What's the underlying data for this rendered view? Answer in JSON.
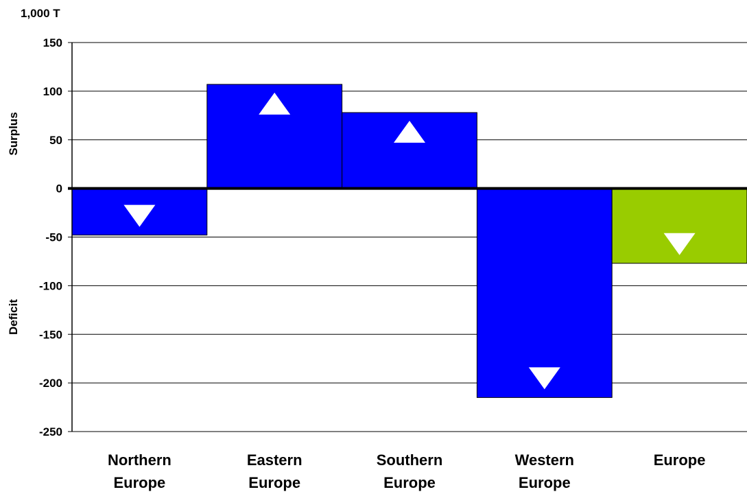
{
  "chart_data": {
    "type": "bar",
    "unit_label": "1,000 T",
    "surplus_label": "Surplus",
    "deficit_label": "Deficit",
    "categories": [
      [
        "Northern",
        "Europe"
      ],
      [
        "Eastern",
        "Europe"
      ],
      [
        "Southern",
        "Europe"
      ],
      [
        "Western",
        "Europe"
      ],
      [
        "Europe"
      ]
    ],
    "values": [
      -48,
      107,
      78,
      -215,
      -77
    ],
    "bar_colors": [
      "#0000ff",
      "#0000ff",
      "#0000ff",
      "#0000ff",
      "#99cc00"
    ],
    "ylim": [
      -250,
      150
    ],
    "yticks": [
      150,
      100,
      50,
      0,
      -50,
      -100,
      -150,
      -200,
      -250
    ],
    "grid": true,
    "direction_markers": [
      "down",
      "up",
      "up",
      "down",
      "down"
    ],
    "marker_color": "#ffffff"
  }
}
